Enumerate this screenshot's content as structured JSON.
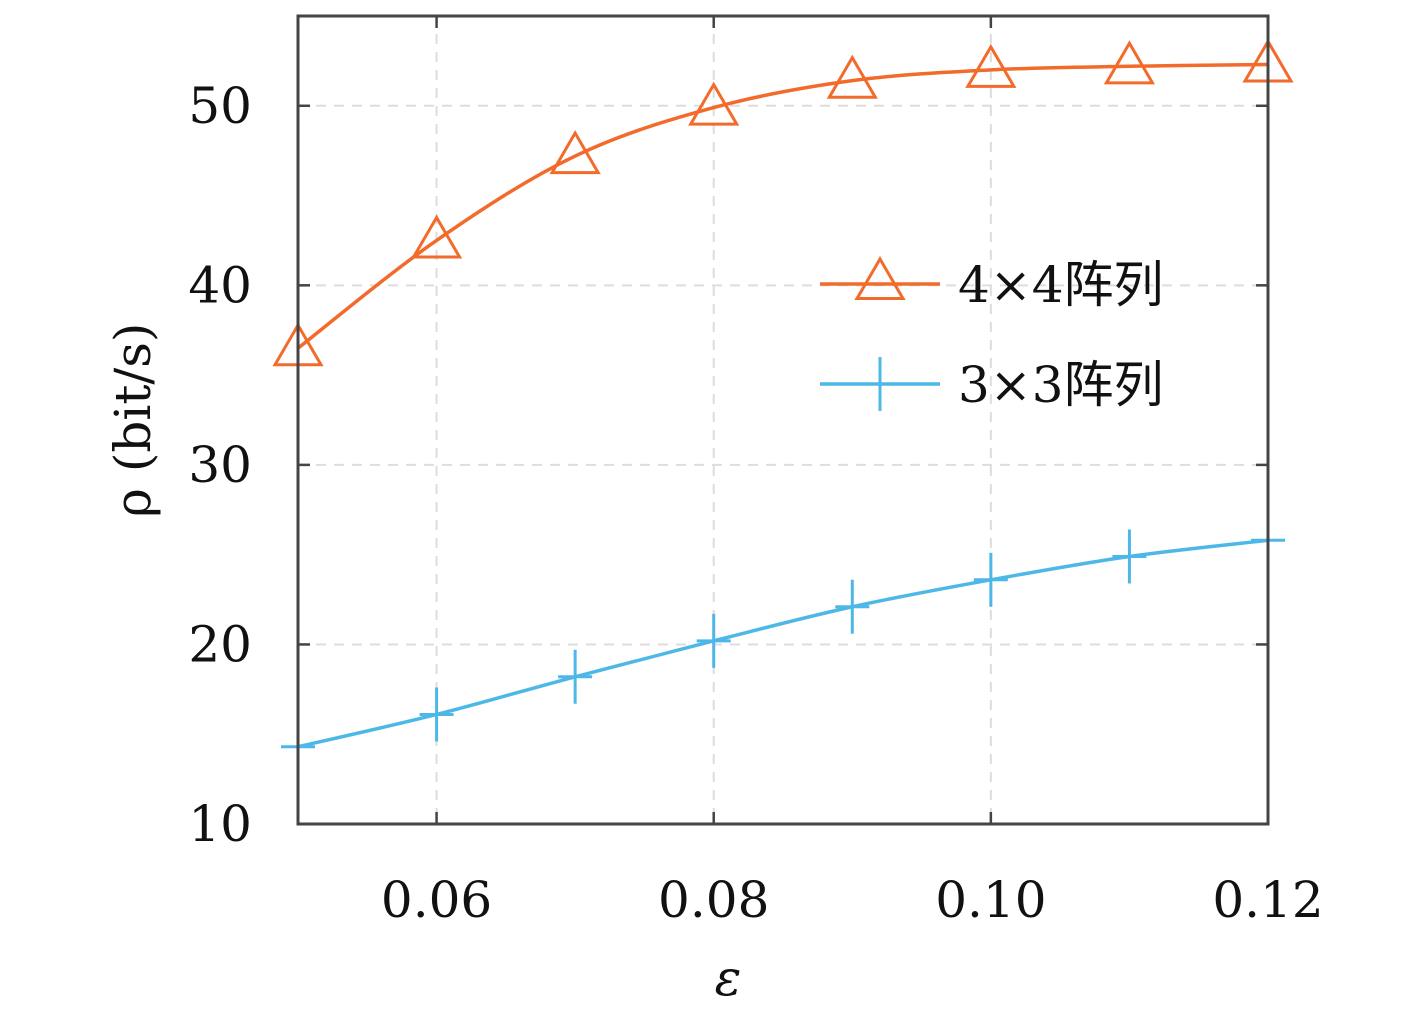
{
  "chart_data": {
    "type": "line",
    "xlabel": "ε",
    "ylabel": "ρ (bit/s)",
    "xlim": [
      0.05,
      0.12
    ],
    "ylim": [
      10,
      55
    ],
    "xticks": [
      0.06,
      0.08,
      0.1,
      0.12
    ],
    "xtick_labels": [
      "0.06",
      "0.08",
      "0.10",
      "0.12"
    ],
    "yticks": [
      10,
      20,
      30,
      40,
      50
    ],
    "ytick_labels": [
      "10",
      "20",
      "30",
      "40",
      "50"
    ],
    "grid": true,
    "legend_position": "right",
    "x": [
      0.05,
      0.06,
      0.07,
      0.08,
      0.09,
      0.1,
      0.11,
      0.12
    ],
    "series": [
      {
        "name": "4×4阵列",
        "color": "#f26b2b",
        "marker": "triangle",
        "values": [
          36.5,
          42.5,
          47.2,
          49.9,
          51.4,
          52.0,
          52.2,
          52.3
        ]
      },
      {
        "name": "3×3阵列",
        "color": "#4db8e8",
        "marker": "plus",
        "values": [
          14.3,
          16.1,
          18.2,
          20.2,
          22.1,
          23.6,
          24.9,
          25.8
        ]
      }
    ]
  }
}
